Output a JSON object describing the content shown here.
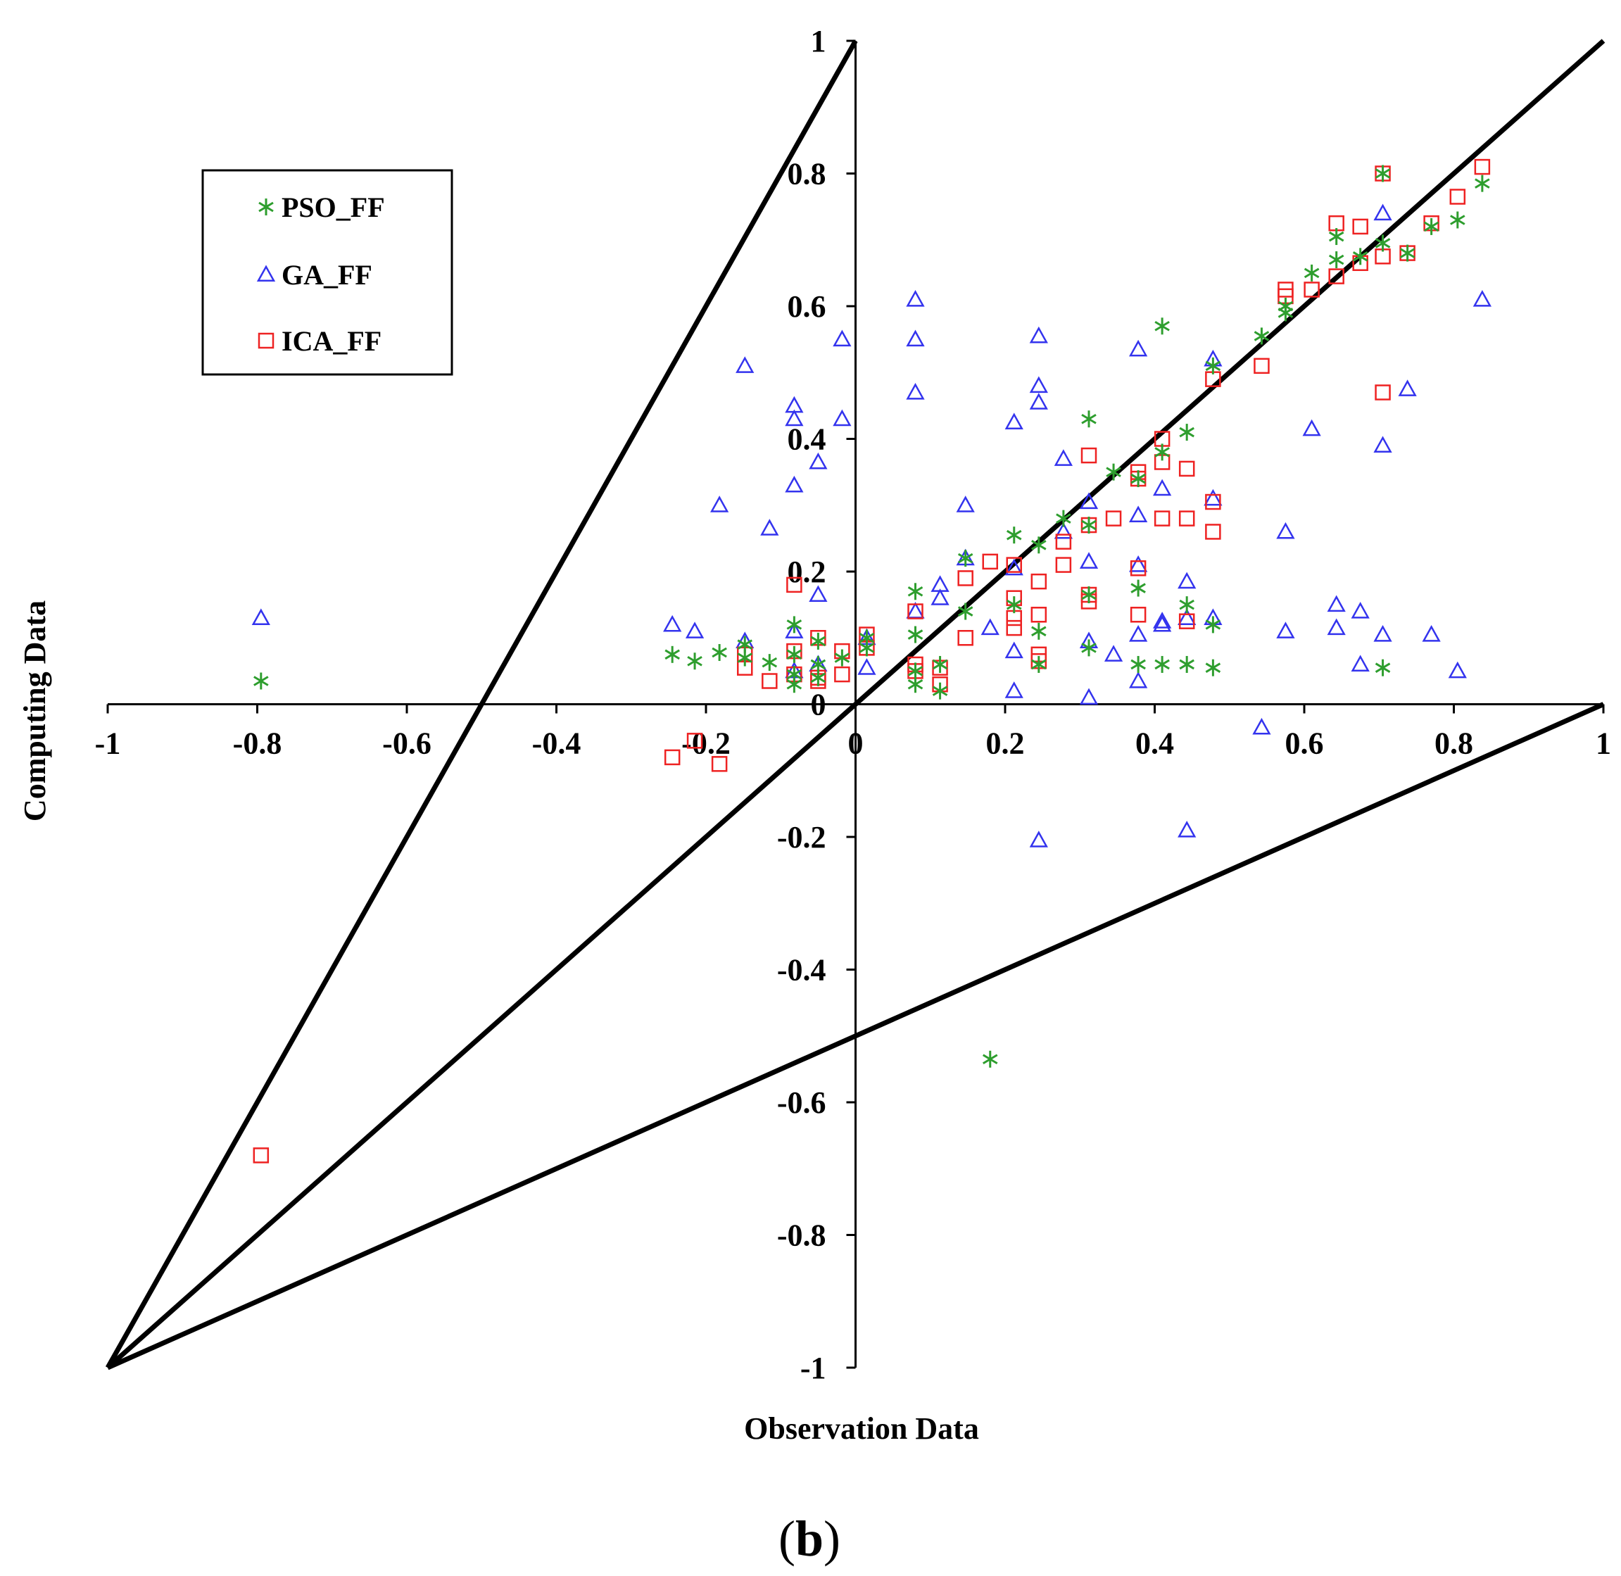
{
  "chart_data": {
    "type": "scatter",
    "xlabel": "Observation Data",
    "ylabel": "Computing Data",
    "panel_label": "(b)",
    "panel_label_parts": {
      "open": "(",
      "letter": "b",
      "close": ")"
    },
    "xlim": [
      -1,
      1
    ],
    "ylim": [
      -1,
      1
    ],
    "x_ticks": [
      -1,
      -0.8,
      -0.6,
      -0.4,
      -0.2,
      0,
      0.2,
      0.4,
      0.6,
      0.8,
      1
    ],
    "y_ticks": [
      -1,
      -0.8,
      -0.6,
      -0.4,
      -0.2,
      0,
      0.2,
      0.4,
      0.6,
      0.8,
      1
    ],
    "x_tick_labels": [
      "-1",
      "-0.8",
      "-0.6",
      "-0.4",
      "-0.2",
      "0",
      "0.2",
      "0.4",
      "0.6",
      "0.8",
      "1"
    ],
    "y_tick_labels": [
      "-1",
      "-0.8",
      "-0.6",
      "-0.4",
      "-0.2",
      "0",
      "0.2",
      "0.4",
      "0.6",
      "0.8",
      "1"
    ],
    "grid": false,
    "legend_position": "top-left",
    "reference_lines": [
      {
        "name": "upper-bound-line",
        "x": [
          -1,
          0
        ],
        "y": [
          -1,
          1
        ]
      },
      {
        "name": "one-to-one-line",
        "x": [
          -1,
          1
        ],
        "y": [
          -1,
          1
        ]
      },
      {
        "name": "lower-bound-line",
        "x": [
          -1,
          1
        ],
        "y": [
          -1,
          0
        ]
      }
    ],
    "series": [
      {
        "name": "PSO_FF",
        "marker": "asterisk",
        "color": "#2e9e2e",
        "points": [
          [
            -0.795,
            0.035
          ],
          [
            -0.245,
            0.075
          ],
          [
            -0.215,
            0.065
          ],
          [
            -0.182,
            0.078
          ],
          [
            -0.148,
            0.09
          ],
          [
            -0.148,
            0.07
          ],
          [
            -0.115,
            0.063
          ],
          [
            -0.082,
            0.12
          ],
          [
            -0.082,
            0.075
          ],
          [
            -0.082,
            0.045
          ],
          [
            -0.082,
            0.03
          ],
          [
            -0.05,
            0.095
          ],
          [
            -0.05,
            0.06
          ],
          [
            -0.05,
            0.04
          ],
          [
            -0.018,
            0.07
          ],
          [
            0.015,
            0.1
          ],
          [
            0.015,
            0.085
          ],
          [
            0.08,
            0.17
          ],
          [
            0.08,
            0.105
          ],
          [
            0.08,
            0.05
          ],
          [
            0.08,
            0.03
          ],
          [
            0.113,
            0.06
          ],
          [
            0.113,
            0.02
          ],
          [
            0.147,
            0.22
          ],
          [
            0.147,
            0.14
          ],
          [
            0.18,
            -0.535
          ],
          [
            0.212,
            0.255
          ],
          [
            0.212,
            0.15
          ],
          [
            0.245,
            0.24
          ],
          [
            0.245,
            0.11
          ],
          [
            0.245,
            0.06
          ],
          [
            0.278,
            0.28
          ],
          [
            0.312,
            0.43
          ],
          [
            0.312,
            0.27
          ],
          [
            0.312,
            0.165
          ],
          [
            0.312,
            0.085
          ],
          [
            0.345,
            0.35
          ],
          [
            0.378,
            0.34
          ],
          [
            0.378,
            0.175
          ],
          [
            0.378,
            0.06
          ],
          [
            0.41,
            0.57
          ],
          [
            0.41,
            0.38
          ],
          [
            0.41,
            0.06
          ],
          [
            0.443,
            0.41
          ],
          [
            0.443,
            0.15
          ],
          [
            0.443,
            0.06
          ],
          [
            0.478,
            0.51
          ],
          [
            0.478,
            0.12
          ],
          [
            0.478,
            0.055
          ],
          [
            0.543,
            0.555
          ],
          [
            0.575,
            0.6
          ],
          [
            0.575,
            0.59
          ],
          [
            0.61,
            0.65
          ],
          [
            0.643,
            0.705
          ],
          [
            0.643,
            0.67
          ],
          [
            0.675,
            0.675
          ],
          [
            0.705,
            0.8
          ],
          [
            0.705,
            0.695
          ],
          [
            0.705,
            0.055
          ],
          [
            0.738,
            0.68
          ],
          [
            0.77,
            0.72
          ],
          [
            0.805,
            0.73
          ],
          [
            0.838,
            0.785
          ]
        ]
      },
      {
        "name": "GA_FF",
        "marker": "triangle",
        "color": "#3333ee",
        "points": [
          [
            -0.795,
            0.13
          ],
          [
            -0.245,
            0.12
          ],
          [
            -0.215,
            0.11
          ],
          [
            -0.182,
            0.3
          ],
          [
            -0.148,
            0.51
          ],
          [
            -0.148,
            0.095
          ],
          [
            -0.115,
            0.265
          ],
          [
            -0.082,
            0.45
          ],
          [
            -0.082,
            0.43
          ],
          [
            -0.082,
            0.33
          ],
          [
            -0.082,
            0.11
          ],
          [
            -0.082,
            0.05
          ],
          [
            -0.05,
            0.365
          ],
          [
            -0.05,
            0.165
          ],
          [
            -0.05,
            0.06
          ],
          [
            -0.018,
            0.55
          ],
          [
            -0.018,
            0.43
          ],
          [
            0.015,
            0.1
          ],
          [
            0.015,
            0.055
          ],
          [
            0.08,
            0.61
          ],
          [
            0.08,
            0.55
          ],
          [
            0.08,
            0.47
          ],
          [
            0.08,
            0.14
          ],
          [
            0.113,
            0.18
          ],
          [
            0.113,
            0.16
          ],
          [
            0.147,
            0.3
          ],
          [
            0.147,
            0.22
          ],
          [
            0.18,
            0.115
          ],
          [
            0.212,
            0.425
          ],
          [
            0.212,
            0.205
          ],
          [
            0.212,
            0.08
          ],
          [
            0.212,
            0.02
          ],
          [
            0.245,
            0.555
          ],
          [
            0.245,
            0.48
          ],
          [
            0.245,
            0.455
          ],
          [
            0.245,
            -0.205
          ],
          [
            0.278,
            0.37
          ],
          [
            0.278,
            0.26
          ],
          [
            0.312,
            0.305
          ],
          [
            0.312,
            0.215
          ],
          [
            0.312,
            0.095
          ],
          [
            0.312,
            0.01
          ],
          [
            0.345,
            0.075
          ],
          [
            0.378,
            0.535
          ],
          [
            0.378,
            0.285
          ],
          [
            0.378,
            0.21
          ],
          [
            0.378,
            0.105
          ],
          [
            0.378,
            0.035
          ],
          [
            0.41,
            0.325
          ],
          [
            0.41,
            0.125
          ],
          [
            0.41,
            0.12
          ],
          [
            0.443,
            0.185
          ],
          [
            0.443,
            0.13
          ],
          [
            0.443,
            -0.19
          ],
          [
            0.478,
            0.52
          ],
          [
            0.478,
            0.31
          ],
          [
            0.478,
            0.13
          ],
          [
            0.543,
            -0.035
          ],
          [
            0.575,
            0.26
          ],
          [
            0.575,
            0.11
          ],
          [
            0.61,
            0.415
          ],
          [
            0.643,
            0.15
          ],
          [
            0.643,
            0.115
          ],
          [
            0.675,
            0.14
          ],
          [
            0.675,
            0.06
          ],
          [
            0.705,
            0.74
          ],
          [
            0.705,
            0.39
          ],
          [
            0.705,
            0.105
          ],
          [
            0.738,
            0.475
          ],
          [
            0.77,
            0.105
          ],
          [
            0.805,
            0.05
          ],
          [
            0.838,
            0.61
          ]
        ]
      },
      {
        "name": "ICA_FF",
        "marker": "square",
        "color": "#ee2222",
        "points": [
          [
            -0.795,
            -0.68
          ],
          [
            -0.245,
            -0.08
          ],
          [
            -0.215,
            -0.055
          ],
          [
            -0.182,
            -0.09
          ],
          [
            -0.148,
            0.075
          ],
          [
            -0.148,
            0.055
          ],
          [
            -0.115,
            0.035
          ],
          [
            -0.082,
            0.18
          ],
          [
            -0.082,
            0.08
          ],
          [
            -0.082,
            0.045
          ],
          [
            -0.05,
            0.1
          ],
          [
            -0.05,
            0.04
          ],
          [
            -0.05,
            0.035
          ],
          [
            -0.018,
            0.08
          ],
          [
            -0.018,
            0.045
          ],
          [
            0.015,
            0.105
          ],
          [
            0.015,
            0.085
          ],
          [
            0.08,
            0.14
          ],
          [
            0.08,
            0.06
          ],
          [
            0.08,
            0.05
          ],
          [
            0.113,
            0.055
          ],
          [
            0.113,
            0.03
          ],
          [
            0.147,
            0.19
          ],
          [
            0.147,
            0.1
          ],
          [
            0.18,
            0.215
          ],
          [
            0.212,
            0.21
          ],
          [
            0.212,
            0.16
          ],
          [
            0.212,
            0.13
          ],
          [
            0.212,
            0.115
          ],
          [
            0.245,
            0.185
          ],
          [
            0.245,
            0.135
          ],
          [
            0.245,
            0.075
          ],
          [
            0.245,
            0.065
          ],
          [
            0.278,
            0.245
          ],
          [
            0.278,
            0.21
          ],
          [
            0.312,
            0.375
          ],
          [
            0.312,
            0.27
          ],
          [
            0.312,
            0.165
          ],
          [
            0.312,
            0.155
          ],
          [
            0.345,
            0.28
          ],
          [
            0.378,
            0.35
          ],
          [
            0.378,
            0.34
          ],
          [
            0.378,
            0.205
          ],
          [
            0.378,
            0.135
          ],
          [
            0.41,
            0.4
          ],
          [
            0.41,
            0.365
          ],
          [
            0.41,
            0.28
          ],
          [
            0.443,
            0.355
          ],
          [
            0.443,
            0.28
          ],
          [
            0.443,
            0.125
          ],
          [
            0.478,
            0.49
          ],
          [
            0.478,
            0.305
          ],
          [
            0.478,
            0.26
          ],
          [
            0.543,
            0.51
          ],
          [
            0.575,
            0.625
          ],
          [
            0.575,
            0.615
          ],
          [
            0.61,
            0.625
          ],
          [
            0.643,
            0.725
          ],
          [
            0.643,
            0.645
          ],
          [
            0.675,
            0.72
          ],
          [
            0.675,
            0.665
          ],
          [
            0.705,
            0.8
          ],
          [
            0.705,
            0.675
          ],
          [
            0.705,
            0.47
          ],
          [
            0.738,
            0.68
          ],
          [
            0.77,
            0.725
          ],
          [
            0.805,
            0.765
          ],
          [
            0.838,
            0.81
          ]
        ]
      }
    ]
  }
}
